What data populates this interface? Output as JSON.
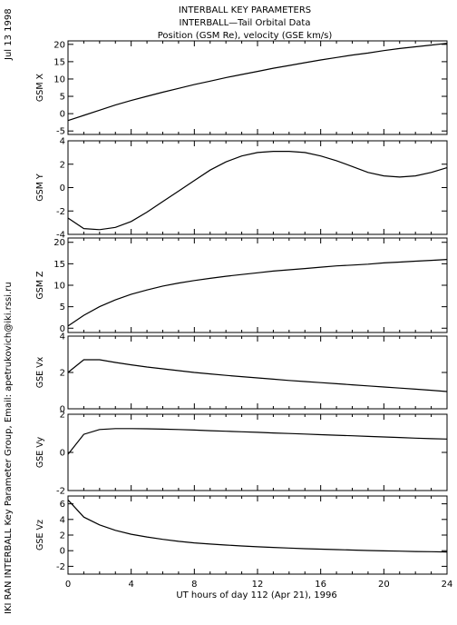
{
  "header": {
    "title_lines": [
      "INTERBALL KEY PARAMETERS",
      "INTERBALL—Tail Orbital Data",
      "Position (GSM Re), velocity (GSE km/s)"
    ]
  },
  "side": {
    "date": "Jul 13 1998",
    "credit": "IKI RAN INTERBALL Key Parameter Group, Email: apetrukovich@iki.rssi.ru"
  },
  "chart_data": {
    "type": "line",
    "x": [
      0,
      1,
      2,
      3,
      4,
      5,
      6,
      7,
      8,
      9,
      10,
      11,
      12,
      13,
      14,
      15,
      16,
      17,
      18,
      19,
      20,
      21,
      22,
      23,
      24
    ],
    "xlabel": "UT hours of day 112 (Apr 21), 1996",
    "xlim": [
      0,
      24
    ],
    "xticks": [
      0,
      4,
      8,
      12,
      16,
      20,
      24
    ],
    "panels": [
      {
        "ylabel": "GSM X",
        "ylim": [
          -6,
          21
        ],
        "yticks": [
          -5,
          0,
          5,
          10,
          15,
          20
        ],
        "values": [
          -2.0,
          -0.5,
          1.0,
          2.5,
          3.8,
          5.0,
          6.2,
          7.3,
          8.4,
          9.4,
          10.4,
          11.3,
          12.2,
          13.1,
          13.9,
          14.7,
          15.5,
          16.2,
          16.9,
          17.5,
          18.2,
          18.8,
          19.3,
          19.8,
          20.3
        ]
      },
      {
        "ylabel": "GSM Y",
        "ylim": [
          -4,
          4
        ],
        "yticks": [
          -4,
          -2,
          0,
          2,
          4
        ],
        "values": [
          -2.6,
          -3.5,
          -3.6,
          -3.4,
          -2.9,
          -2.1,
          -1.2,
          -0.3,
          0.6,
          1.5,
          2.2,
          2.7,
          3.0,
          3.1,
          3.1,
          3.0,
          2.7,
          2.3,
          1.8,
          1.3,
          1.0,
          0.9,
          1.0,
          1.3,
          1.7
        ]
      },
      {
        "ylabel": "GSM Z",
        "ylim": [
          -1,
          21
        ],
        "yticks": [
          0,
          5,
          10,
          15,
          20
        ],
        "values": [
          0.5,
          3.0,
          5.0,
          6.6,
          7.9,
          8.9,
          9.8,
          10.5,
          11.1,
          11.6,
          12.1,
          12.5,
          12.9,
          13.3,
          13.6,
          13.9,
          14.2,
          14.5,
          14.7,
          14.9,
          15.2,
          15.4,
          15.6,
          15.8,
          16.0
        ]
      },
      {
        "ylabel": "GSE Vx",
        "ylim": [
          0,
          4
        ],
        "yticks": [
          0,
          2,
          4
        ],
        "values": [
          2.0,
          2.7,
          2.7,
          2.55,
          2.42,
          2.3,
          2.2,
          2.1,
          2.0,
          1.92,
          1.84,
          1.77,
          1.7,
          1.63,
          1.56,
          1.5,
          1.44,
          1.38,
          1.32,
          1.26,
          1.2,
          1.14,
          1.08,
          1.02,
          0.95
        ]
      },
      {
        "ylabel": "GSE Vy",
        "ylim": [
          -2,
          2
        ],
        "yticks": [
          -2,
          0,
          2
        ],
        "values": [
          -0.1,
          0.95,
          1.2,
          1.25,
          1.25,
          1.24,
          1.22,
          1.2,
          1.17,
          1.14,
          1.11,
          1.08,
          1.05,
          1.02,
          0.99,
          0.96,
          0.93,
          0.9,
          0.87,
          0.84,
          0.81,
          0.78,
          0.75,
          0.72,
          0.7
        ]
      },
      {
        "ylabel": "GSE Vz",
        "ylim": [
          -3,
          7
        ],
        "yticks": [
          -2,
          0,
          2,
          4,
          6
        ],
        "values": [
          6.5,
          4.3,
          3.3,
          2.6,
          2.1,
          1.75,
          1.45,
          1.2,
          1.0,
          0.85,
          0.72,
          0.6,
          0.5,
          0.42,
          0.34,
          0.26,
          0.2,
          0.14,
          0.08,
          0.02,
          -0.02,
          -0.06,
          -0.1,
          -0.13,
          -0.16
        ]
      }
    ]
  }
}
